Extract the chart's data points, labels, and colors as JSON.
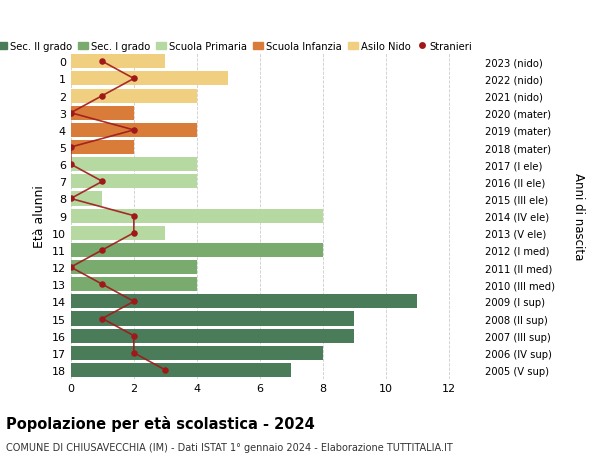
{
  "ages": [
    18,
    17,
    16,
    15,
    14,
    13,
    12,
    11,
    10,
    9,
    8,
    7,
    6,
    5,
    4,
    3,
    2,
    1,
    0
  ],
  "right_labels": [
    "2005 (V sup)",
    "2006 (IV sup)",
    "2007 (III sup)",
    "2008 (II sup)",
    "2009 (I sup)",
    "2010 (III med)",
    "2011 (II med)",
    "2012 (I med)",
    "2013 (V ele)",
    "2014 (IV ele)",
    "2015 (III ele)",
    "2016 (II ele)",
    "2017 (I ele)",
    "2018 (mater)",
    "2019 (mater)",
    "2020 (mater)",
    "2021 (nido)",
    "2022 (nido)",
    "2023 (nido)"
  ],
  "bar_values": [
    7,
    8,
    9,
    9,
    11,
    4,
    4,
    8,
    3,
    8,
    1,
    4,
    4,
    2,
    4,
    2,
    4,
    5,
    3
  ],
  "bar_colors": [
    "#4a7c59",
    "#4a7c59",
    "#4a7c59",
    "#4a7c59",
    "#4a7c59",
    "#7aab6e",
    "#7aab6e",
    "#7aab6e",
    "#b5d9a0",
    "#b5d9a0",
    "#b5d9a0",
    "#b5d9a0",
    "#b5d9a0",
    "#d97c3a",
    "#d97c3a",
    "#d97c3a",
    "#f0d080",
    "#f0d080",
    "#f0d080"
  ],
  "stranieri_values": [
    3,
    2,
    2,
    1,
    2,
    1,
    0,
    1,
    2,
    2,
    0,
    1,
    0,
    0,
    2,
    0,
    1,
    2,
    1
  ],
  "legend_labels": [
    "Sec. II grado",
    "Sec. I grado",
    "Scuola Primaria",
    "Scuola Infanzia",
    "Asilo Nido",
    "Stranieri"
  ],
  "legend_colors": [
    "#4a7c59",
    "#7aab6e",
    "#b5d9a0",
    "#d97c3a",
    "#f0d080",
    "#a0191a"
  ],
  "ylabel_left": "Età alunni",
  "ylabel_right": "Anni di nascita",
  "title": "Popolazione per età scolastica - 2024",
  "subtitle": "COMUNE DI CHIUSAVECCHIA (IM) - Dati ISTAT 1° gennaio 2024 - Elaborazione TUTTITALIA.IT",
  "xlim": [
    0,
    13
  ],
  "xticks": [
    0,
    2,
    4,
    6,
    8,
    10,
    12
  ],
  "bg_color": "#ffffff",
  "stranieri_color": "#a0191a",
  "grid_color": "#cccccc"
}
